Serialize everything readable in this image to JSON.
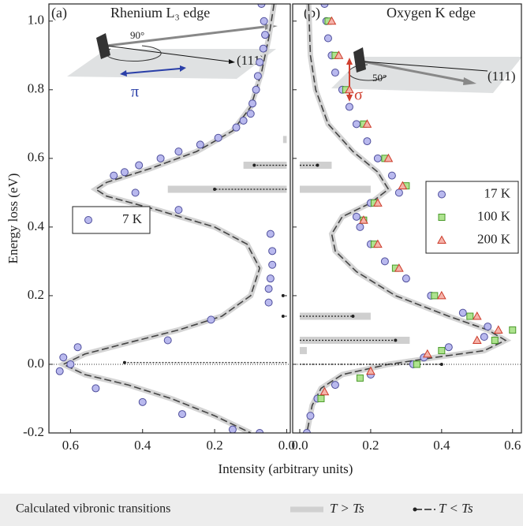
{
  "chart_data": [
    {
      "type": "scatter",
      "panel_label": "(a)",
      "title": "Rhenium L₃ edge",
      "annotations": {
        "angle": "90°",
        "direction": "(111)",
        "polarization": "π"
      },
      "xlabel": "Intensity (arbitrary units)",
      "ylabel": "Energy loss (eV)",
      "xlim": [
        0.66,
        -0.01
      ],
      "xticks": [
        0.6,
        0.4,
        0.2,
        {
          "value": 0,
          "label": "0.0"
        }
      ],
      "ylim": [
        -0.2,
        1.05
      ],
      "yticks": [
        -0.2,
        {
          "value": 0,
          "label": "0.0"
        },
        0.2,
        0.4,
        0.6,
        0.8,
        {
          "value": 1,
          "label": "1.0"
        }
      ],
      "hline": 0,
      "series": [
        {
          "name": "7 K",
          "marker": "circle",
          "color": "#b9b9ee",
          "x": [
            0.07,
            0.063,
            0.06,
            0.065,
            0.075,
            0.08,
            0.085,
            0.095,
            0.1,
            0.12,
            0.14,
            0.19,
            0.24,
            0.3,
            0.35,
            0.41,
            0.45,
            0.48,
            0.42,
            0.3,
            0.045,
            0.04,
            0.04,
            0.045,
            0.05,
            0.05,
            0.21,
            0.33,
            0.58,
            0.62,
            0.6,
            0.63,
            0.53,
            0.4,
            0.29,
            0.15,
            0.075
          ],
          "y": [
            1.05,
            1.0,
            0.96,
            0.92,
            0.88,
            0.84,
            0.8,
            0.76,
            0.73,
            0.71,
            0.69,
            0.66,
            0.64,
            0.62,
            0.6,
            0.58,
            0.56,
            0.55,
            0.5,
            0.45,
            0.38,
            0.33,
            0.29,
            0.25,
            0.22,
            0.18,
            0.13,
            0.07,
            0.05,
            0.02,
            0.0,
            -0.02,
            -0.07,
            -0.11,
            -0.145,
            -0.19,
            -0.2
          ]
        }
      ],
      "fit": {
        "x": [
          0.035,
          0.05,
          0.07,
          0.1,
          0.15,
          0.25,
          0.38,
          0.5,
          0.53,
          0.5,
          0.36,
          0.2,
          0.11,
          0.075,
          0.1,
          0.18,
          0.3,
          0.45,
          0.56,
          0.62,
          0.56,
          0.44,
          0.32,
          0.2,
          0.1
        ],
        "y": [
          1.05,
          0.95,
          0.85,
          0.75,
          0.68,
          0.62,
          0.57,
          0.53,
          0.51,
          0.49,
          0.45,
          0.4,
          0.35,
          0.28,
          0.2,
          0.14,
          0.1,
          0.06,
          0.03,
          0.0,
          -0.03,
          -0.06,
          -0.1,
          -0.15,
          -0.2
        ]
      },
      "transitions_above": {
        "x": [
          0.01,
          0.12,
          0.33
        ],
        "y": [
          0.655,
          0.58,
          0.51
        ]
      },
      "transitions_below": {
        "x": [
          0.45,
          0.09,
          0.2,
          0.01,
          0.01
        ],
        "y": [
          0.005,
          0.58,
          0.51,
          0.2,
          0.14
        ]
      },
      "transition_legend": {
        "title": "Calculated vibronic transitions",
        "above": "T > Ts",
        "below": "T < Ts"
      }
    },
    {
      "type": "scatter",
      "panel_label": "(b)",
      "title": "Oxygen K edge",
      "annotations": {
        "angle": "50°",
        "direction": "(111)",
        "polarization": "σ"
      },
      "xlim": [
        -0.02,
        0.625
      ],
      "xticks": [
        {
          "value": 0,
          "label": "0.0"
        },
        0.2,
        0.4,
        0.6
      ],
      "ylim": [
        -0.2,
        1.05
      ],
      "hline": 0,
      "series": [
        {
          "name": "17 K",
          "marker": "circle",
          "color": "#b9b9ee",
          "x": [
            0.07,
            0.075,
            0.08,
            0.09,
            0.1,
            0.12,
            0.14,
            0.16,
            0.19,
            0.22,
            0.26,
            0.28,
            0.2,
            0.16,
            0.17,
            0.2,
            0.24,
            0.3,
            0.37,
            0.46,
            0.53,
            0.52,
            0.42,
            0.35,
            0.32,
            0.2,
            0.1,
            0.05,
            0.03,
            0.02
          ],
          "y": [
            1.05,
            1.0,
            0.95,
            0.9,
            0.85,
            0.8,
            0.75,
            0.7,
            0.65,
            0.6,
            0.55,
            0.5,
            0.47,
            0.43,
            0.4,
            0.35,
            0.3,
            0.25,
            0.2,
            0.15,
            0.11,
            0.08,
            0.05,
            0.02,
            0.0,
            -0.03,
            -0.06,
            -0.1,
            -0.15,
            -0.2
          ]
        },
        {
          "name": "100 K",
          "marker": "square",
          "color": "#aee38f",
          "x": [
            0.08,
            0.1,
            0.13,
            0.18,
            0.24,
            0.3,
            0.21,
            0.18,
            0.21,
            0.27,
            0.38,
            0.48,
            0.6,
            0.55,
            0.4,
            0.33,
            0.17,
            0.06
          ],
          "y": [
            1.0,
            0.9,
            0.8,
            0.7,
            0.6,
            0.52,
            0.47,
            0.42,
            0.35,
            0.28,
            0.2,
            0.14,
            0.1,
            0.07,
            0.04,
            0.0,
            -0.04,
            -0.1
          ]
        },
        {
          "name": "200 K",
          "marker": "triangle",
          "color": "#f5b3aa",
          "x": [
            0.09,
            0.11,
            0.14,
            0.19,
            0.25,
            0.29,
            0.22,
            0.18,
            0.22,
            0.28,
            0.4,
            0.5,
            0.56,
            0.5,
            0.36,
            0.2,
            0.07
          ],
          "y": [
            1.0,
            0.9,
            0.8,
            0.7,
            0.6,
            0.52,
            0.47,
            0.42,
            0.35,
            0.28,
            0.2,
            0.14,
            0.1,
            0.07,
            0.03,
            -0.02,
            -0.08
          ]
        }
      ],
      "fit": {
        "x": [
          0.025,
          0.03,
          0.045,
          0.08,
          0.15,
          0.22,
          0.25,
          0.2,
          0.12,
          0.09,
          0.1,
          0.16,
          0.27,
          0.42,
          0.53,
          0.58,
          0.52,
          0.38,
          0.25,
          0.12,
          0.06,
          0.035,
          0.02
        ],
        "y": [
          1.05,
          0.9,
          0.8,
          0.7,
          0.62,
          0.56,
          0.51,
          0.47,
          0.43,
          0.38,
          0.33,
          0.27,
          0.2,
          0.14,
          0.1,
          0.07,
          0.04,
          0.02,
          0.0,
          -0.03,
          -0.07,
          -0.12,
          -0.2
        ]
      },
      "transitions_above": {
        "x": [
          0.09,
          0.2,
          0.2,
          0.31,
          0.02
        ],
        "y": [
          0.58,
          0.51,
          0.14,
          0.07,
          0.04
        ]
      },
      "transitions_below": {
        "x": [
          0.4,
          0.27,
          0.15,
          0.05
        ],
        "y": [
          0.0,
          0.07,
          0.14,
          0.58
        ]
      }
    }
  ]
}
